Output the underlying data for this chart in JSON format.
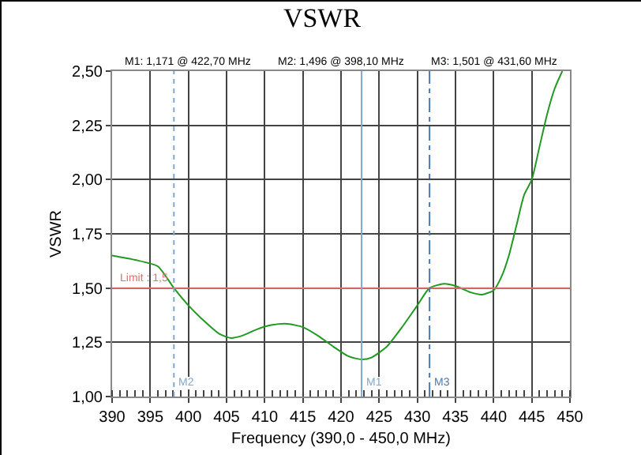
{
  "chart_data": {
    "type": "line",
    "title": "VSWR",
    "xlabel": "Frequency (390,0 - 450,0 MHz)",
    "ylabel": "VSWR",
    "x": [
      390,
      393,
      396,
      398.1,
      400,
      402,
      404,
      405.5,
      407,
      409,
      411,
      413,
      415,
      417,
      419,
      421,
      422.7,
      424,
      426,
      428,
      430,
      431.6,
      433.5,
      435,
      437,
      438.5,
      440,
      441,
      442,
      443,
      444,
      445,
      446,
      447,
      448,
      449
    ],
    "series": [
      {
        "color": "#1f9a1f",
        "values": [
          1.65,
          1.63,
          1.6,
          1.5,
          1.42,
          1.35,
          1.29,
          1.27,
          1.28,
          1.31,
          1.33,
          1.335,
          1.32,
          1.28,
          1.23,
          1.185,
          1.171,
          1.18,
          1.23,
          1.32,
          1.42,
          1.5,
          1.52,
          1.51,
          1.48,
          1.47,
          1.49,
          1.55,
          1.65,
          1.79,
          1.93,
          2.0,
          2.15,
          2.3,
          2.42,
          2.5
        ]
      }
    ],
    "xlim": [
      390,
      450
    ],
    "xticks": [
      390,
      395,
      400,
      405,
      410,
      415,
      420,
      425,
      430,
      435,
      440,
      445,
      450
    ],
    "ylim": [
      1,
      2.5
    ],
    "yticks": [
      {
        "value": 1,
        "label": "1,00"
      },
      {
        "value": 1.25,
        "label": "1,25"
      },
      {
        "value": 1.5,
        "label": "1,50"
      },
      {
        "value": 1.75,
        "label": "1,75"
      },
      {
        "value": 2,
        "label": "2,00"
      },
      {
        "value": 2.25,
        "label": "2,25"
      },
      {
        "value": 2.5,
        "label": "2,50"
      }
    ],
    "grid": true,
    "marker": "none",
    "line_style": "solid",
    "ref_lines": [
      {
        "axis": "y",
        "value": 1.5,
        "label": "Limit : 1,5",
        "color": "#e07070",
        "line_style": "solid"
      },
      {
        "axis": "x",
        "value": 398.1,
        "label": "M2",
        "color": "#7fa8d0",
        "line_style": "dotted"
      },
      {
        "axis": "x",
        "value": 422.7,
        "label": "M1",
        "color": "#7fa8d0",
        "line_style": "solid"
      },
      {
        "axis": "x",
        "value": 431.6,
        "label": "M3",
        "color": "#4a78b0",
        "line_style": "dashdot"
      }
    ],
    "annotations": [
      "M1: 1,171 @ 422,70 MHz",
      "M2: 1,496 @ 398,10 MHz",
      "M3: 1,501 @ 431,60 MHz"
    ]
  }
}
